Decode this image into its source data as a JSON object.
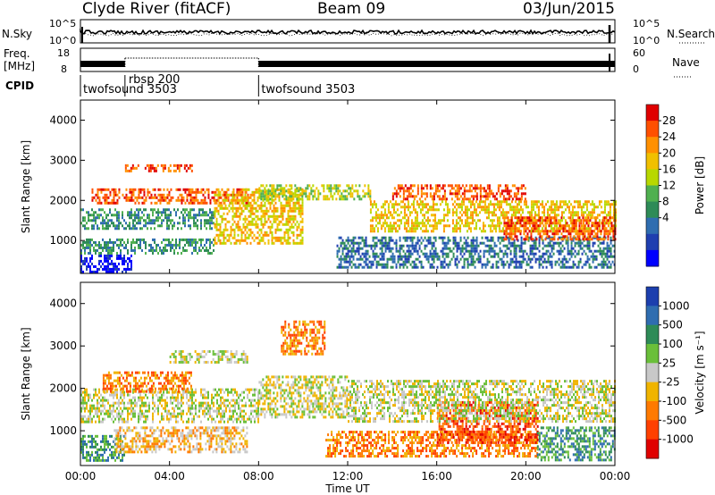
{
  "header": {
    "title": "Clyde River (fitACF)",
    "beam": "Beam 09",
    "date": "03/Jun/2015"
  },
  "chart_data": [
    {
      "type": "line",
      "name": "noise-panel",
      "left_label": "N.Sky",
      "right_label": "N.Search",
      "left_ticks": [
        "10^5",
        "10^0"
      ],
      "right_ticks": [
        "10^5",
        "10^0"
      ],
      "scale": "log",
      "ylim": [
        1,
        100000
      ]
    },
    {
      "type": "line",
      "name": "frequency-panel",
      "left_label_top": "Freq.",
      "left_label_bottom": "[MHz]",
      "right_label": "Nave",
      "left_ticks": [
        18,
        8
      ],
      "right_ticks": [
        60,
        0
      ],
      "freq_ylim": [
        8,
        18
      ],
      "nave_ylim": [
        0,
        60
      ]
    },
    {
      "type": "table",
      "name": "cpid-panel",
      "label": "CPID",
      "segments": [
        {
          "start_hour": 0.0,
          "end_hour": 8.0,
          "label": "twofsound 3503"
        },
        {
          "start_hour": 2.0,
          "end_hour": 8.0,
          "label": "rbsp 200"
        },
        {
          "start_hour": 8.0,
          "end_hour": 24.0,
          "label": "twofsound 3503"
        }
      ]
    },
    {
      "type": "heatmap",
      "name": "power-panel",
      "ylabel": "Slant Range [km]",
      "yticks": [
        1000,
        2000,
        3000,
        4000
      ],
      "ylim": [
        180,
        4500
      ],
      "colorbar": {
        "label": "Power [dB]",
        "ticks": [
          "28",
          "24",
          "20",
          "16",
          "12",
          "8",
          "4"
        ],
        "colors": [
          "#e00000",
          "#ff5000",
          "#ff9000",
          "#f0c000",
          "#b8d800",
          "#50b050",
          "#2e8b57",
          "#2f6db0",
          "#1f3fb0",
          "#0000ff"
        ]
      },
      "bands": [
        {
          "start_hour": 0.0,
          "end_hour": 2.3,
          "range_km": [
            200,
            650
          ],
          "level": 9
        },
        {
          "start_hour": 0.0,
          "end_hour": 6.0,
          "range_km": [
            650,
            1050
          ],
          "level": 6
        },
        {
          "start_hour": 0.0,
          "end_hour": 6.0,
          "range_km": [
            1300,
            1800
          ],
          "level": 6
        },
        {
          "start_hour": 0.5,
          "end_hour": 7.5,
          "range_km": [
            1900,
            2300
          ],
          "level": 1
        },
        {
          "start_hour": 2.0,
          "end_hour": 5.0,
          "range_km": [
            2700,
            2900
          ],
          "level": 1
        },
        {
          "start_hour": 6.0,
          "end_hour": 10.0,
          "range_km": [
            900,
            2300
          ],
          "level": 3
        },
        {
          "start_hour": 8.0,
          "end_hour": 13.0,
          "range_km": [
            2000,
            2400
          ],
          "level": 4
        },
        {
          "start_hour": 11.5,
          "end_hour": 24.0,
          "range_km": [
            300,
            1100
          ],
          "level": 7
        },
        {
          "start_hour": 13.0,
          "end_hour": 24.0,
          "range_km": [
            1200,
            2000
          ],
          "level": 3
        },
        {
          "start_hour": 19.0,
          "end_hour": 24.0,
          "range_km": [
            1000,
            1600
          ],
          "level": 1
        },
        {
          "start_hour": 14.0,
          "end_hour": 20.0,
          "range_km": [
            2000,
            2400
          ],
          "level": 1
        }
      ]
    },
    {
      "type": "heatmap",
      "name": "velocity-panel",
      "ylabel": "Slant Range [km]",
      "yticks": [
        1000,
        2000,
        3000,
        4000
      ],
      "ylim": [
        180,
        4500
      ],
      "xlabel": "Time UT",
      "xticks": [
        "00:00",
        "04:00",
        "08:00",
        "12:00",
        "16:00",
        "20:00",
        "00:00"
      ],
      "xlim_hours": [
        0,
        24
      ],
      "colorbar": {
        "label": "Velocity [m s⁻¹]",
        "ticks": [
          "1000",
          "500",
          "100",
          "25",
          "-25",
          "-100",
          "-500",
          "-1000"
        ],
        "colors": [
          "#1c3fae",
          "#2f6db0",
          "#2e8b57",
          "#6abf3a",
          "#c8c8c8",
          "#f0b400",
          "#ff7a00",
          "#ff4000",
          "#e00000"
        ]
      },
      "bands": [
        {
          "start_hour": 0.0,
          "end_hour": 2.0,
          "range_km": [
            300,
            900
          ],
          "level": 2
        },
        {
          "start_hour": 0.0,
          "end_hour": 8.0,
          "range_km": [
            1200,
            2000
          ],
          "level": 4
        },
        {
          "start_hour": 1.5,
          "end_hour": 7.5,
          "range_km": [
            500,
            1100
          ],
          "level": 5
        },
        {
          "start_hour": 1.0,
          "end_hour": 5.0,
          "range_km": [
            1900,
            2400
          ],
          "level": 6
        },
        {
          "start_hour": 4.0,
          "end_hour": 7.5,
          "range_km": [
            2600,
            2900
          ],
          "level": 4
        },
        {
          "start_hour": 8.0,
          "end_hour": 12.0,
          "range_km": [
            1300,
            2300
          ],
          "level": 4
        },
        {
          "start_hour": 9.0,
          "end_hour": 11.0,
          "range_km": [
            2800,
            3600
          ],
          "level": 6
        },
        {
          "start_hour": 11.0,
          "end_hour": 20.5,
          "range_km": [
            400,
            1000
          ],
          "level": 6
        },
        {
          "start_hour": 16.0,
          "end_hour": 20.5,
          "range_km": [
            700,
            1700
          ],
          "level": 7
        },
        {
          "start_hour": 12.0,
          "end_hour": 24.0,
          "range_km": [
            1200,
            2200
          ],
          "level": 4
        },
        {
          "start_hour": 20.5,
          "end_hour": 24.0,
          "range_km": [
            300,
            1100
          ],
          "level": 2
        }
      ]
    }
  ]
}
